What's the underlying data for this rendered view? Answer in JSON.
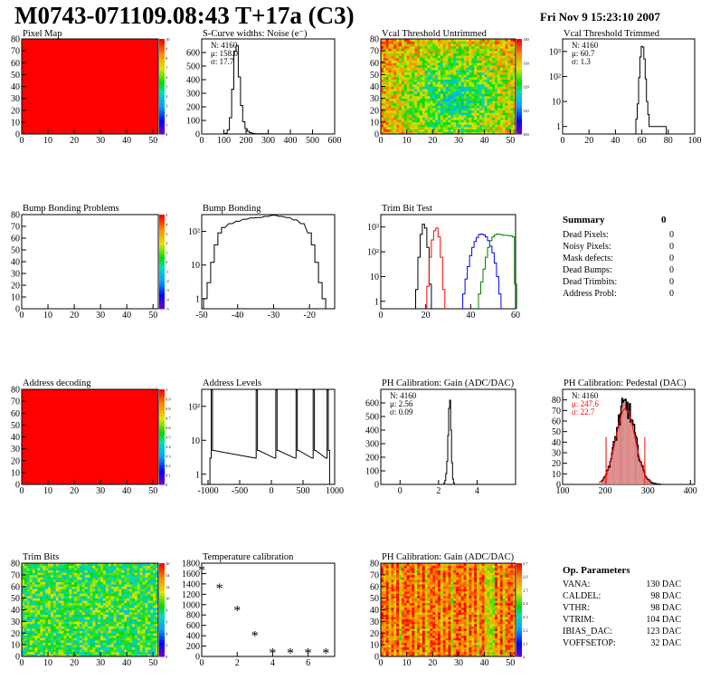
{
  "header": {
    "title": "M0743-071109.08:43 T+17a (C3)",
    "datetime": "Fri Nov  9 15:23:10 2007"
  },
  "colors": {
    "axis": "#000000",
    "red_map": "#ff0000",
    "trim_black": "#000000",
    "trim_red": "#ff0000",
    "trim_blue": "#0000ff",
    "trim_green": "#00cc00",
    "gauss_fit": "#ff0000",
    "pedestal_fill": "#d98080"
  },
  "chart_data": [
    {
      "id": "pixel-map",
      "type": "heatmap",
      "title": "Pixel Map",
      "xlim": [
        0,
        52
      ],
      "ylim": [
        0,
        80
      ],
      "xticks": [
        "0",
        "10",
        "20",
        "30",
        "40",
        "50"
      ],
      "yticks": [
        "0",
        "10",
        "20",
        "30",
        "40",
        "50",
        "60",
        "70",
        "80"
      ],
      "fill": "uniform_max",
      "zscale": "rainbow",
      "zticks": [
        "10",
        "9",
        "8",
        "7",
        "6",
        "5",
        "4",
        "3",
        "2",
        "1",
        "0"
      ]
    },
    {
      "id": "noise",
      "type": "histogram",
      "title": "S-Curve widths: Noise (e⁻)",
      "xlim": [
        0,
        600
      ],
      "ylim": [
        0,
        700
      ],
      "xticks": [
        "0",
        "100",
        "200",
        "300",
        "400",
        "500",
        "600"
      ],
      "yticks": [
        "0",
        "100",
        "200",
        "300",
        "400",
        "500",
        "600"
      ],
      "stats": [
        "N: 4160",
        "μ: 158.0",
        "σ: 17.7"
      ],
      "x": [
        110,
        120,
        130,
        140,
        150,
        160,
        170,
        180,
        190,
        200,
        210,
        220,
        230,
        240,
        260,
        290
      ],
      "y": [
        5,
        30,
        120,
        330,
        610,
        650,
        420,
        210,
        90,
        40,
        20,
        10,
        5,
        3,
        2,
        1
      ]
    },
    {
      "id": "vcal-untrimmed",
      "type": "heatmap",
      "title": "Vcal Threshold Untrimmed",
      "xlim": [
        0,
        52
      ],
      "ylim": [
        0,
        80
      ],
      "xticks": [
        "0",
        "10",
        "20",
        "30",
        "40",
        "50"
      ],
      "yticks": [
        "0",
        "10",
        "20",
        "30",
        "40",
        "50",
        "60",
        "70",
        "80"
      ],
      "fill": "noise_center_low",
      "zscale": "rainbow",
      "zticks": [
        "140",
        "130",
        "120",
        "110",
        "100"
      ]
    },
    {
      "id": "vcal-trimmed",
      "type": "histogram",
      "title": "Vcal Threshold Trimmed",
      "xlim": [
        0,
        100
      ],
      "log_y": true,
      "xticks": [
        "0",
        "20",
        "40",
        "60",
        "80",
        "100"
      ],
      "yticks": [
        "1",
        "10",
        "10²",
        "10³"
      ],
      "stats": [
        "N: 4160",
        "μ: 60.7",
        "σ: 1.3"
      ],
      "x": [
        56,
        57,
        58,
        59,
        60,
        61,
        62,
        63,
        64,
        65,
        66,
        78
      ],
      "y": [
        2,
        8,
        90,
        600,
        1600,
        1500,
        500,
        80,
        10,
        3,
        1,
        1
      ]
    },
    {
      "id": "bump-problems",
      "type": "heatmap",
      "title": "Bump Bonding Problems",
      "xlim": [
        0,
        52
      ],
      "ylim": [
        0,
        80
      ],
      "xticks": [
        "0",
        "10",
        "20",
        "30",
        "40",
        "50"
      ],
      "yticks": [
        "0",
        "10",
        "20",
        "30",
        "40",
        "50",
        "60",
        "70",
        "80"
      ],
      "fill": "empty",
      "zscale": "rainbow",
      "zticks": [
        "5",
        "4",
        "3",
        "2",
        "1",
        "0",
        "-1",
        "-2",
        "-3",
        "-4",
        "-5"
      ]
    },
    {
      "id": "bump-bonding",
      "type": "histogram",
      "title": "Bump Bonding",
      "xlim": [
        -50,
        -13
      ],
      "log_y": true,
      "xticks": [
        "-50",
        "-40",
        "-30",
        "-20"
      ],
      "yticks": [
        "1",
        "10",
        "10²"
      ],
      "x": [
        -49,
        -48,
        -47,
        -46,
        -45,
        -44,
        -42,
        -40,
        -38,
        -36,
        -34,
        -32,
        -30,
        -28,
        -26,
        -24,
        -22,
        -20,
        -19,
        -18,
        -17,
        -16
      ],
      "y": [
        1,
        3,
        12,
        40,
        90,
        130,
        170,
        200,
        230,
        250,
        260,
        280,
        300,
        280,
        260,
        220,
        170,
        90,
        40,
        12,
        3,
        1
      ]
    },
    {
      "id": "trim-bit-test",
      "type": "histogram",
      "title": "Trim Bit Test",
      "xlim": [
        0,
        60
      ],
      "log_y": true,
      "xticks": [
        "0",
        "20",
        "40",
        "60"
      ],
      "yticks": [
        "1",
        "10",
        "10²",
        "10³"
      ],
      "series": [
        {
          "color": "black",
          "x": [
            16,
            17,
            18,
            19,
            20,
            21,
            22
          ],
          "y": [
            3,
            60,
            500,
            1300,
            900,
            150,
            5
          ]
        },
        {
          "color": "red",
          "x": [
            21,
            22,
            23,
            24,
            25,
            26,
            27,
            28
          ],
          "y": [
            4,
            60,
            300,
            700,
            900,
            400,
            60,
            3
          ]
        },
        {
          "color": "blue",
          "x": [
            37,
            38,
            39,
            40,
            41,
            42,
            43,
            44,
            45,
            46,
            47,
            48,
            49,
            50,
            51,
            52,
            53
          ],
          "y": [
            2,
            8,
            25,
            70,
            150,
            260,
            380,
            500,
            520,
            480,
            400,
            280,
            170,
            90,
            35,
            10,
            2
          ]
        },
        {
          "color": "green",
          "x": [
            44,
            45,
            46,
            47,
            48,
            49,
            50,
            51,
            52,
            53,
            54,
            55,
            56,
            57,
            58,
            59,
            60
          ],
          "y": [
            2,
            6,
            20,
            60,
            150,
            280,
            400,
            480,
            520,
            500,
            480,
            460,
            460,
            450,
            440,
            400,
            5
          ]
        }
      ]
    },
    {
      "id": "address-decoding",
      "type": "heatmap",
      "title": "Address decoding",
      "xlim": [
        0,
        52
      ],
      "ylim": [
        0,
        80
      ],
      "xticks": [
        "0",
        "10",
        "20",
        "30",
        "40",
        "50"
      ],
      "yticks": [
        "0",
        "10",
        "20",
        "30",
        "40",
        "50",
        "60",
        "70",
        "80"
      ],
      "fill": "uniform_max",
      "zscale": "rainbow",
      "zticks": [
        "1",
        "0.9",
        "0.8",
        "0.7",
        "0.6",
        "0.5",
        "0.4",
        "0.3",
        "0.2",
        "0.1",
        "0"
      ]
    },
    {
      "id": "address-levels",
      "type": "histogram",
      "title": "Address Levels",
      "xlim": [
        -1100,
        1000
      ],
      "log_y": true,
      "xticks": [
        "-1000",
        "-500",
        "0",
        "500",
        "1000"
      ],
      "yticks": [
        "1",
        "10",
        "10²"
      ],
      "x": [
        -960,
        -940,
        -920,
        -250,
        -230,
        -210,
        60,
        80,
        100,
        380,
        400,
        420,
        650,
        670,
        690,
        870,
        890,
        910
      ],
      "y": [
        3,
        300,
        5,
        3,
        300,
        5,
        3,
        300,
        5,
        3,
        300,
        5,
        3,
        300,
        5,
        3,
        300,
        5
      ]
    },
    {
      "id": "ph-gain",
      "type": "histogram",
      "title": "PH Calibration: Gain (ADC/DAC)",
      "xlim": [
        -1,
        6
      ],
      "ylim": [
        0,
        700
      ],
      "xticks": [
        "0",
        "2",
        "4"
      ],
      "yticks": [
        "0",
        "100",
        "200",
        "300",
        "400",
        "500",
        "600"
      ],
      "stats": [
        "N: 4160",
        "μ: 2.56",
        "σ: 0.09"
      ],
      "x": [
        2.3,
        2.35,
        2.4,
        2.45,
        2.5,
        2.55,
        2.6,
        2.65,
        2.7,
        2.75,
        2.8
      ],
      "y": [
        10,
        30,
        80,
        170,
        360,
        560,
        620,
        400,
        160,
        40,
        10
      ]
    },
    {
      "id": "ph-pedestal",
      "type": "histogram",
      "title": "PH Calibration: Pedestal (DAC)",
      "xlim": [
        100,
        410
      ],
      "ylim": [
        0,
        90
      ],
      "xticks": [
        "100",
        "200",
        "300",
        "400"
      ],
      "yticks": [
        "0",
        "10",
        "20",
        "30",
        "40",
        "50",
        "60",
        "70",
        "80"
      ],
      "stats": [
        "N: 4160",
        "μ: 247.6",
        "σ: 22.7"
      ],
      "mean": 247.6,
      "sigma": 22.7,
      "cut_lines": [
        202,
        293
      ]
    },
    {
      "id": "trim-bits",
      "type": "heatmap",
      "title": "Trim Bits",
      "xlim": [
        0,
        52
      ],
      "ylim": [
        0,
        80
      ],
      "xticks": [
        "0",
        "10",
        "20",
        "30",
        "40",
        "50"
      ],
      "yticks": [
        "0",
        "10",
        "20",
        "30",
        "40",
        "50",
        "60",
        "70",
        "80"
      ],
      "fill": "noise_mid",
      "zscale": "rainbow",
      "zticks": [
        "16",
        "14",
        "12",
        "10",
        "8",
        "6",
        "4",
        "2",
        "0"
      ]
    },
    {
      "id": "temperature",
      "type": "scatter",
      "title": "Temperature calibration",
      "xlim": [
        0,
        7.5
      ],
      "ylim": [
        0,
        1800
      ],
      "xticks": [
        "0",
        "2",
        "4",
        "6"
      ],
      "yticks": [
        "0",
        "200",
        "400",
        "600",
        "800",
        "1000",
        "1200",
        "1400",
        "1600",
        "1800"
      ],
      "x": [
        0,
        1,
        2,
        3,
        4,
        5,
        6,
        7
      ],
      "y": [
        1660,
        1310,
        880,
        390,
        60,
        60,
        60,
        60
      ]
    },
    {
      "id": "ph-gain-map",
      "type": "heatmap",
      "title": "PH Calibration: Gain (ADC/DAC)",
      "xlim": [
        0,
        52
      ],
      "ylim": [
        0,
        80
      ],
      "xticks": [
        "0",
        "10",
        "20",
        "30",
        "40",
        "50"
      ],
      "yticks": [
        "0",
        "10",
        "20",
        "30",
        "40",
        "50",
        "60",
        "70",
        "80"
      ],
      "fill": "gain_columns",
      "zscale": "rainbow",
      "zticks": [
        "2.7",
        "2.6",
        "2.5",
        "2.4",
        "2.3",
        "2.2",
        "2.1",
        "2"
      ]
    }
  ],
  "summary": {
    "title": "Summary",
    "value": "0",
    "rows": [
      {
        "label": "Dead Pixels:",
        "value": "0"
      },
      {
        "label": "Noisy Pixels:",
        "value": "0"
      },
      {
        "label": "Mask defects:",
        "value": "0"
      },
      {
        "label": "Dead Bumps:",
        "value": "0"
      },
      {
        "label": "Dead Trimbits:",
        "value": "0"
      },
      {
        "label": "Address Probl:",
        "value": "0"
      }
    ]
  },
  "op_params": {
    "title": "Op. Parameters",
    "rows": [
      {
        "label": "VANA:",
        "value": "130 DAC"
      },
      {
        "label": "CALDEL:",
        "value": "98 DAC"
      },
      {
        "label": "VTHR:",
        "value": "98 DAC"
      },
      {
        "label": "VTRIM:",
        "value": "104 DAC"
      },
      {
        "label": "IBIAS_DAC:",
        "value": "123 DAC"
      },
      {
        "label": "VOFFSETOP:",
        "value": "32 DAC"
      }
    ]
  }
}
